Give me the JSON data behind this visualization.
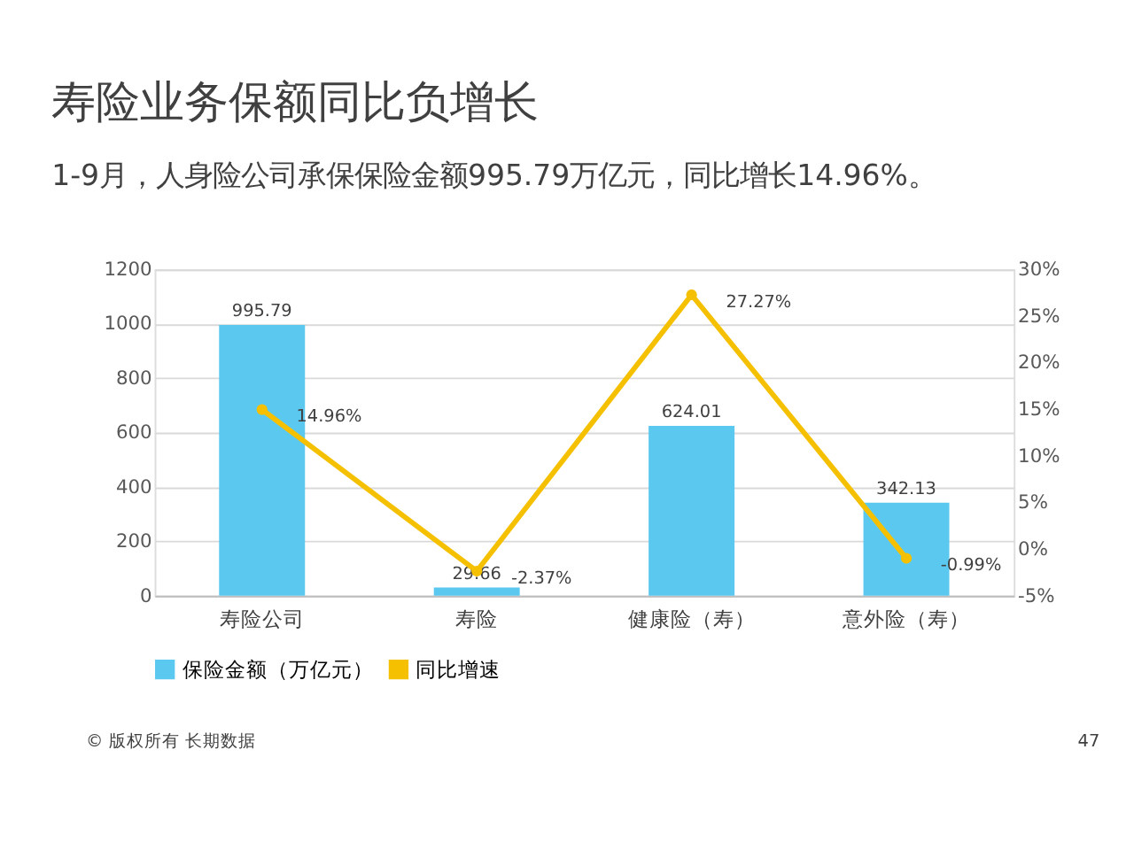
{
  "chart_data": {
    "type": "bar",
    "title": "寿险业务保额同比负增长",
    "subtitle": "1-9月，人身险公司承保保险金额995.79万亿元，同比增长14.96%。",
    "categories": [
      "寿险公司",
      "寿险",
      "健康险（寿）",
      "意外险（寿）"
    ],
    "series": [
      {
        "name": "保险金额（万亿元）",
        "type": "bar",
        "color": "#5bc8f0",
        "values": [
          995.79,
          29.66,
          624.01,
          342.13
        ],
        "value_labels": [
          "995.79",
          "29.66",
          "624.01",
          "342.13"
        ]
      },
      {
        "name": "同比增速",
        "type": "line",
        "axis": "y2",
        "color": "#f5c000",
        "marker": "circle",
        "values": [
          14.96,
          -2.37,
          27.27,
          -0.99
        ],
        "value_labels": [
          "14.96%",
          "-2.37%",
          "27.27%",
          "-0.99%"
        ]
      }
    ],
    "ylim": [
      0,
      1200
    ],
    "yticks": [
      0,
      200,
      400,
      600,
      800,
      1000,
      1200
    ],
    "y2lim": [
      -5,
      30
    ],
    "y2ticks": [
      {
        "value": -5,
        "label": "-5%"
      },
      {
        "value": 0,
        "label": "0%"
      },
      {
        "value": 5,
        "label": "5%"
      },
      {
        "value": 10,
        "label": "10%"
      },
      {
        "value": 15,
        "label": "15%"
      },
      {
        "value": 20,
        "label": "20%"
      },
      {
        "value": 25,
        "label": "25%"
      },
      {
        "value": 30,
        "label": "30%"
      }
    ],
    "grid": "y",
    "legend": "bottom",
    "annotations": [
      "© 版权所有 长期数据",
      "47"
    ]
  }
}
